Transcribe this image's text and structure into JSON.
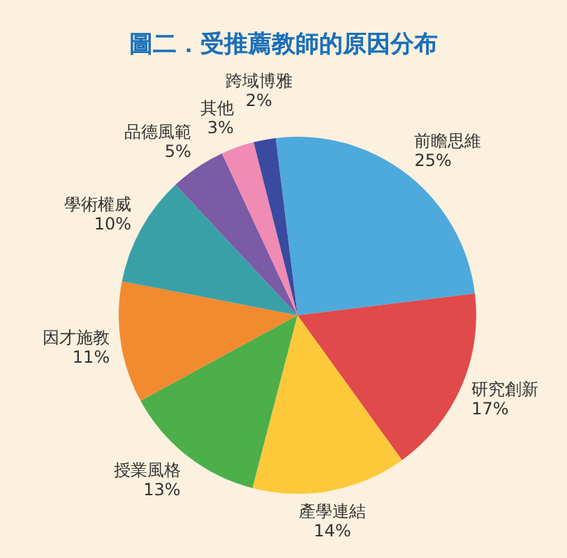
{
  "chart_data": {
    "type": "pie",
    "title": "圖二．受推薦教師的原因分布",
    "categories": [
      "前瞻思維",
      "研究創新",
      "產學連結",
      "授業風格",
      "因才施教",
      "學術權威",
      "品德風範",
      "其他",
      "跨域博雅"
    ],
    "values": [
      25,
      17,
      14,
      13,
      11,
      10,
      5,
      3,
      2
    ],
    "value_labels": [
      "25%",
      "17%",
      "14%",
      "13%",
      "11%",
      "10%",
      "5%",
      "3%",
      "2%"
    ],
    "colors": [
      "#4ea9dc",
      "#e04a4a",
      "#fdc93a",
      "#4caf4a",
      "#f28a30",
      "#3aa0a8",
      "#7b5aa6",
      "#f08bb4",
      "#3a4aa0"
    ],
    "legend": false
  }
}
